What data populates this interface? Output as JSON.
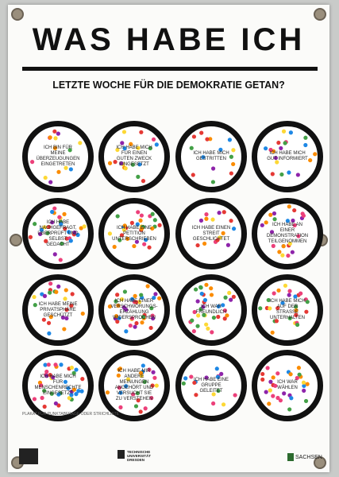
{
  "header": {
    "title": "WAS HABE ICH",
    "subtitle": "LETZTE WOCHE FÜR DIE DEMOKRATIE GETAN?"
  },
  "circles": [
    {
      "label": "ICH BIN FÜR MEINE ÜBERZEUGUNGEN EINGETRETEN"
    },
    {
      "label": "ICH HABE MICH FÜR EINEN GUTEN ZWECK EINGESETZT"
    },
    {
      "label": "ICH HABE MICH GESTRITTEN"
    },
    {
      "label": "ICH HABE MICH GUT INFORMIERT"
    },
    {
      "label": "ICH HABE NACHGEFRAGT, ÜBERPRÜFT UND SELBST GEDACHT"
    },
    {
      "label": "ICH HABE EINE PETITION UNTERSCHRIEBEN"
    },
    {
      "label": "ICH HABE EINEN STREIT GESCHLICHTET"
    },
    {
      "label": "ICH HABE AN EINER DEMONSTRATION TEILGENOMMEN"
    },
    {
      "label": "ICH HABE MEINE PRIVATSPHÄRE GESCHÜTZT"
    },
    {
      "label": "ICH HABE EINER VERSCHWÖRUNGS-ERZÄHLUNG WIDERSPROCHEN"
    },
    {
      "label": "ICH WAR FREUNDLICH"
    },
    {
      "label": "ICH HABE MICH AUF DER STRASSE UNTERHALTEN"
    },
    {
      "label": "ICH HABE MICH FÜR MENSCHENRECHTE EINGESETZT"
    },
    {
      "label": "ICH HABE MIR ANDERE MEINUNGEN ANGEHÖRT UND VERSUCHT SIE ZU VERSTEHEN"
    },
    {
      "label": "ICH HABE EINE GRUPPE GELEITET"
    },
    {
      "label": "ICH WAR WÄHLEN"
    }
  ],
  "footer": {
    "note": "PLAKAT FÜR PUNKTABFRAGE ODER STRICHLISTE",
    "university": "TECHNISCHE UNIVERSITÄT DRESDEN",
    "state": "SACHSEN"
  }
}
